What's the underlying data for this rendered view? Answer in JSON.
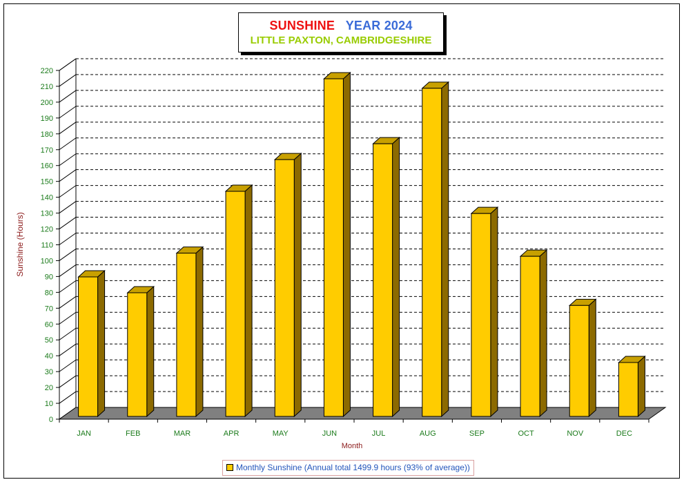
{
  "colors": {
    "title_main": "#ee1111",
    "title_year": "#3a6bd8",
    "subtitle": "#99cc00",
    "axis_label": "#8b1a1a",
    "tick_label": "#1a7a1a",
    "bar_front": "#ffcc00",
    "bar_side": "#8c6a00",
    "bar_top": "#c8a000",
    "floor": "#808080",
    "legend_text": "#2255bb"
  },
  "title": {
    "main": "SUNSHINE",
    "year": "YEAR 2024",
    "subtitle": "LITTLE PAXTON, CAMBRIDGESHIRE"
  },
  "legend": {
    "label": "Monthly Sunshine (Annual total 1499.9 hours (93% of average))"
  },
  "chart_data": {
    "type": "bar",
    "xlabel": "Month",
    "ylabel": "Sunshine (Hours)",
    "ylim": [
      0,
      220
    ],
    "yticks": [
      0,
      10,
      20,
      30,
      40,
      50,
      60,
      70,
      80,
      90,
      100,
      110,
      120,
      130,
      140,
      150,
      160,
      170,
      180,
      190,
      200,
      210,
      220
    ],
    "grid": true,
    "categories": [
      "JAN",
      "FEB",
      "MAR",
      "APR",
      "MAY",
      "JUN",
      "JUL",
      "AUG",
      "SEP",
      "OCT",
      "NOV",
      "DEC"
    ],
    "series": [
      {
        "name": "Monthly Sunshine",
        "values": [
          88,
          78,
          103,
          142,
          162,
          213,
          172,
          207,
          128,
          101,
          70,
          34
        ]
      }
    ],
    "legend_position": "bottom"
  }
}
